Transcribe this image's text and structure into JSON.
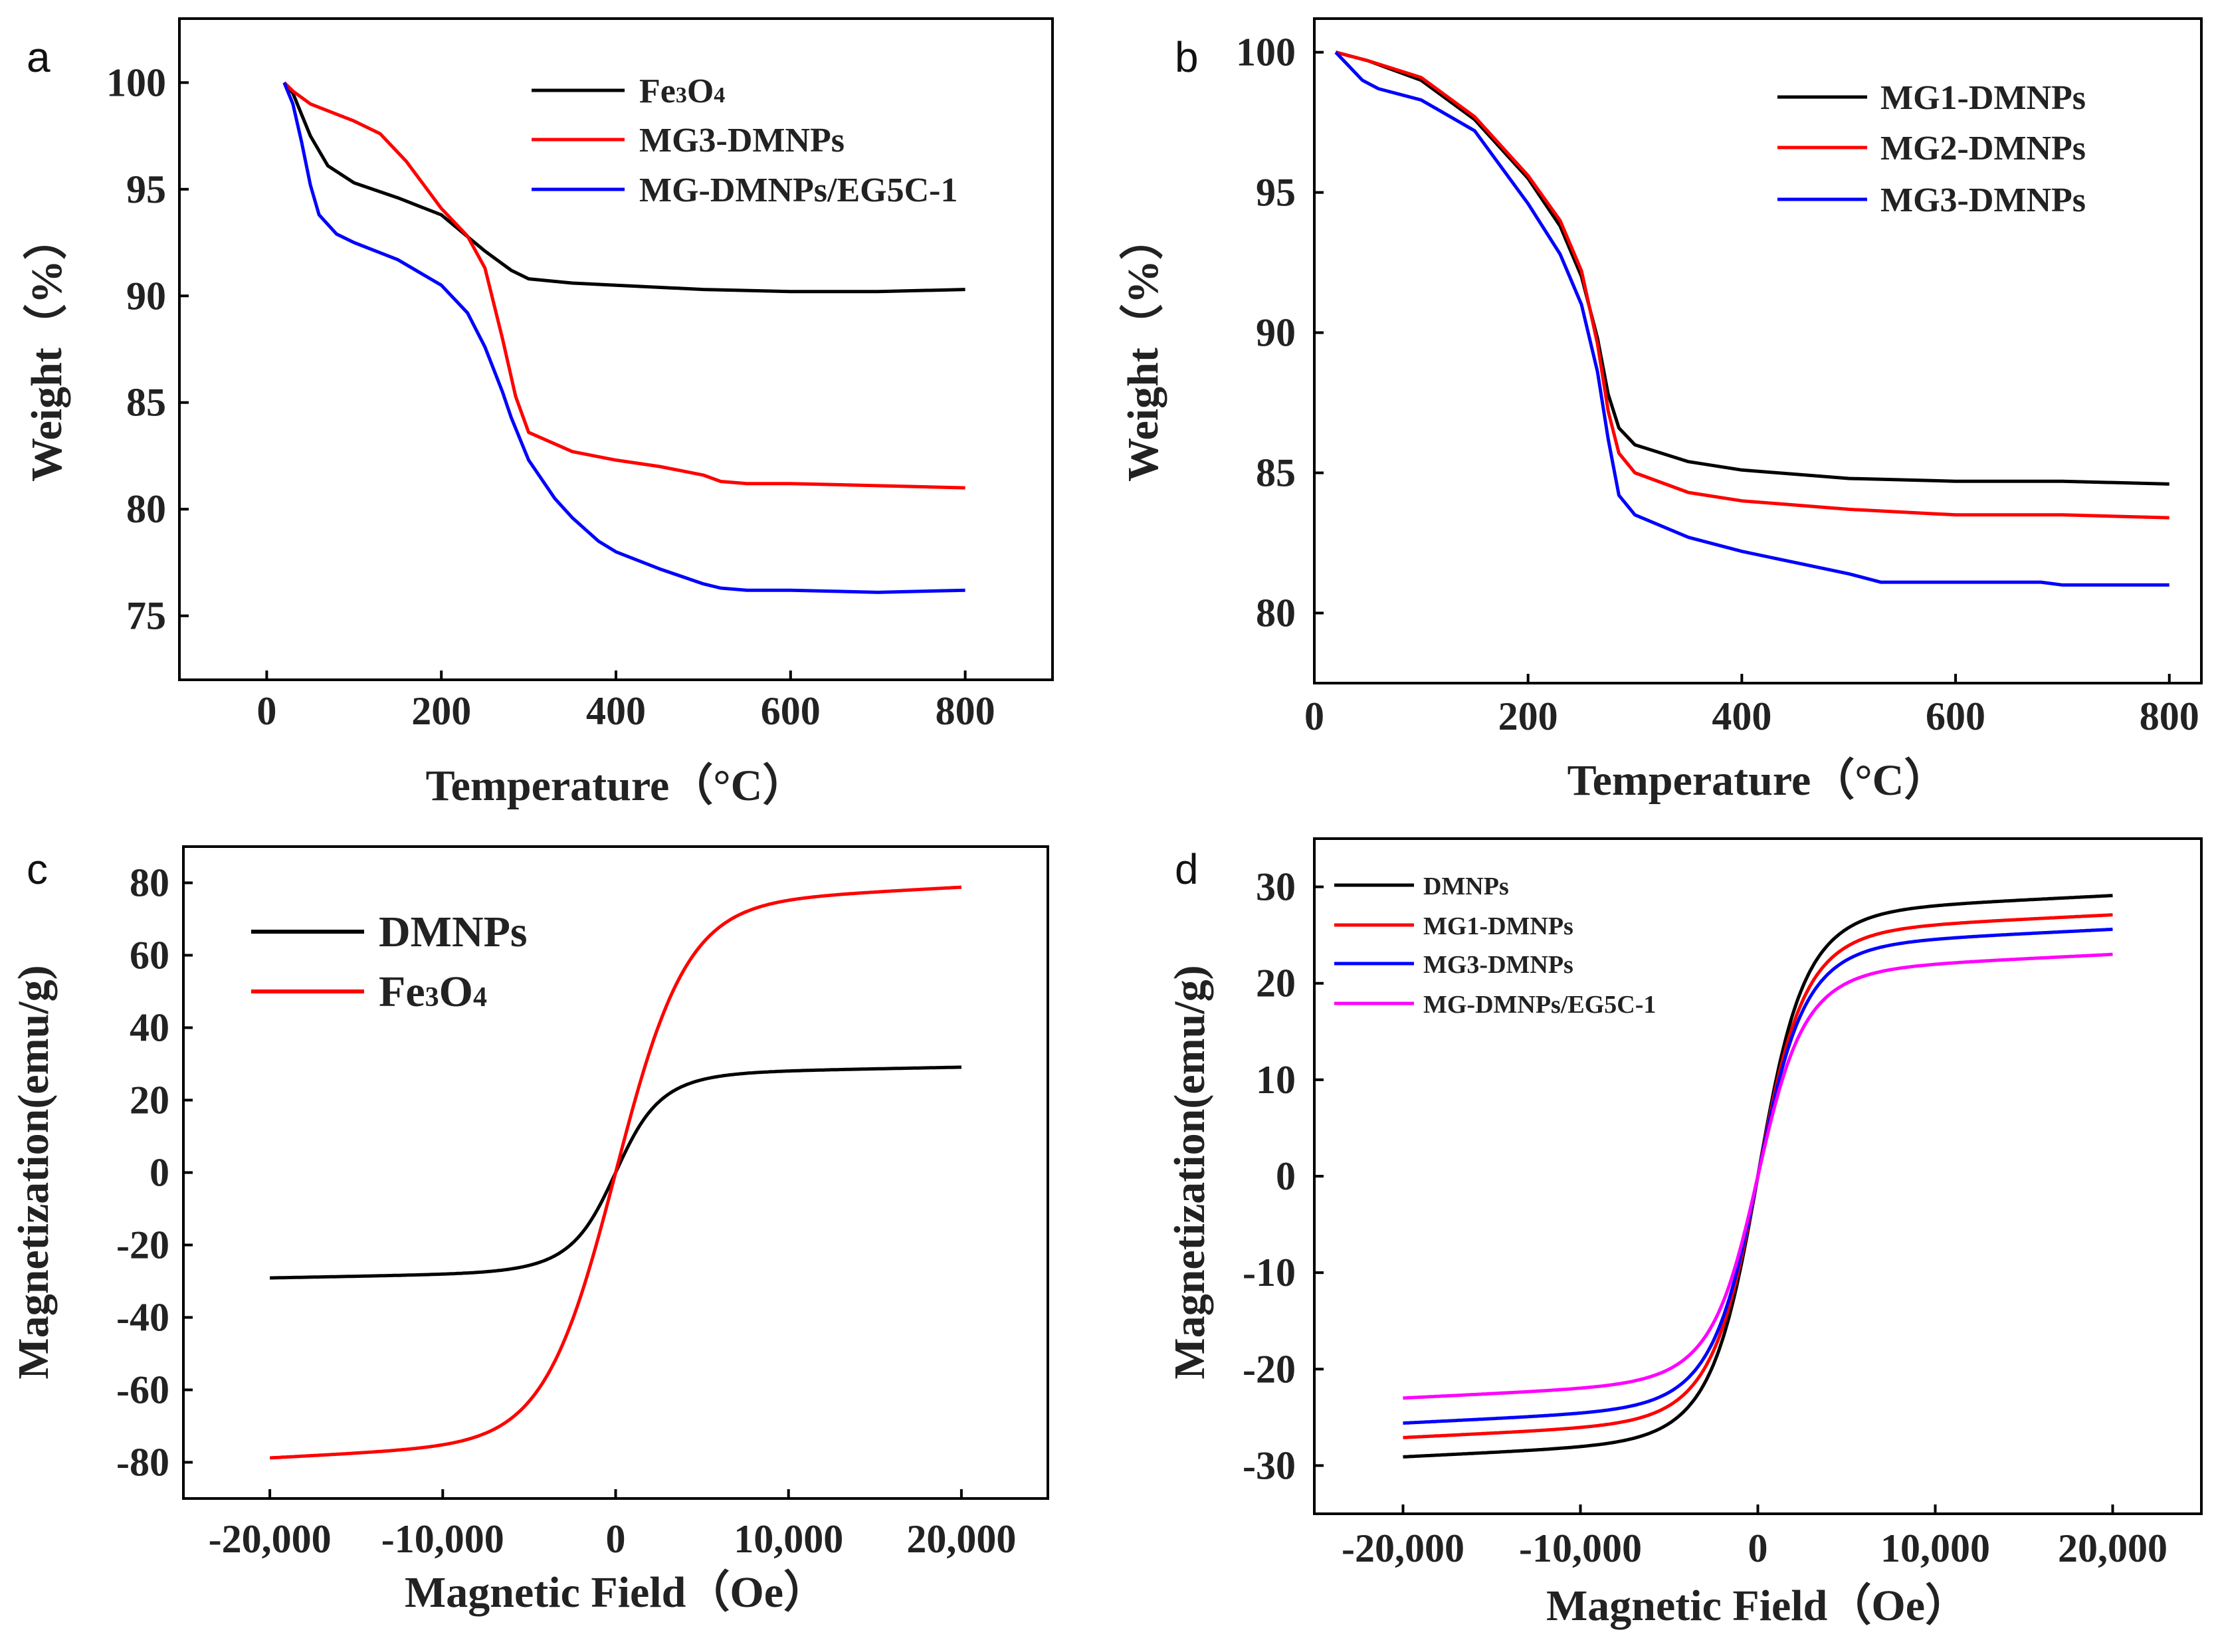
{
  "chart_data": [
    {
      "id": "a",
      "panel_label": "a",
      "type": "line",
      "title": "",
      "xlabel": "Temperature（°C）",
      "ylabel": "Weight（%）",
      "xlim": [
        -100,
        900
      ],
      "ylim": [
        72,
        103
      ],
      "xticks": [
        0,
        200,
        400,
        600,
        800
      ],
      "xtick_labels": [
        "0",
        "200",
        "400",
        "600",
        "800"
      ],
      "yticks": [
        75,
        80,
        85,
        90,
        95,
        100
      ],
      "ytick_labels": [
        "75",
        "80",
        "85",
        "90",
        "95",
        "100"
      ],
      "grid": false,
      "legend_position": "top-right",
      "series": [
        {
          "name": "Fe3O4",
          "label_main": "Fe",
          "label_sub1": "3",
          "label_mid": "O",
          "label_sub2": "4",
          "color": "#000000",
          "x": [
            20,
            30,
            50,
            70,
            100,
            150,
            200,
            250,
            280,
            300,
            350,
            400,
            500,
            600,
            700,
            800
          ],
          "y": [
            100,
            99.5,
            97.5,
            96.1,
            95.3,
            94.6,
            93.8,
            92.1,
            91.2,
            90.8,
            90.6,
            90.5,
            90.3,
            90.2,
            90.2,
            90.3
          ]
        },
        {
          "name": "MG3-DMNPs",
          "color": "#ff0000",
          "x": [
            20,
            30,
            50,
            100,
            130,
            160,
            200,
            230,
            250,
            270,
            285,
            300,
            350,
            400,
            450,
            500,
            520,
            550,
            600,
            700,
            800
          ],
          "y": [
            100,
            99.6,
            99.0,
            98.2,
            97.6,
            96.3,
            94.1,
            92.8,
            91.3,
            88.0,
            85.3,
            83.6,
            82.7,
            82.3,
            82.0,
            81.6,
            81.3,
            81.2,
            81.2,
            81.1,
            81.0
          ]
        },
        {
          "name": "MG-DMNPs/EG5C-1",
          "color": "#0000ff",
          "x": [
            20,
            30,
            40,
            50,
            60,
            80,
            100,
            150,
            200,
            230,
            250,
            270,
            280,
            300,
            330,
            350,
            380,
            400,
            450,
            500,
            520,
            550,
            600,
            700,
            800
          ],
          "y": [
            100,
            99.0,
            97.2,
            95.2,
            93.8,
            92.9,
            92.5,
            91.7,
            90.5,
            89.2,
            87.6,
            85.5,
            84.3,
            82.3,
            80.5,
            79.6,
            78.5,
            78.0,
            77.2,
            76.5,
            76.3,
            76.2,
            76.2,
            76.1,
            76.2
          ]
        }
      ]
    },
    {
      "id": "b",
      "panel_label": "b",
      "type": "line",
      "title": "",
      "xlabel": "Temperature（°C）",
      "ylabel": "Weight（%）",
      "xlim": [
        0,
        830
      ],
      "ylim": [
        77.5,
        101.2
      ],
      "xticks": [
        0,
        200,
        400,
        600,
        800
      ],
      "xtick_labels": [
        "0",
        "200",
        "400",
        "600",
        "800"
      ],
      "yticks": [
        80,
        85,
        90,
        95,
        100
      ],
      "ytick_labels": [
        "80",
        "85",
        "90",
        "95",
        "100"
      ],
      "grid": false,
      "legend_position": "top-right",
      "series": [
        {
          "name": "MG1-DMNPs",
          "color": "#000000",
          "x": [
            20,
            50,
            100,
            150,
            200,
            230,
            250,
            265,
            275,
            285,
            300,
            350,
            400,
            500,
            600,
            700,
            800
          ],
          "y": [
            100,
            99.7,
            99.0,
            97.6,
            95.5,
            93.8,
            92.0,
            89.8,
            87.8,
            86.6,
            86.0,
            85.4,
            85.1,
            84.8,
            84.7,
            84.7,
            84.6
          ]
        },
        {
          "name": "MG2-DMNPs",
          "color": "#ff0000",
          "x": [
            20,
            50,
            100,
            150,
            200,
            230,
            250,
            265,
            275,
            285,
            300,
            350,
            400,
            500,
            600,
            700,
            800
          ],
          "y": [
            100,
            99.7,
            99.1,
            97.7,
            95.6,
            94.0,
            92.2,
            89.6,
            87.2,
            85.7,
            85.0,
            84.3,
            84.0,
            83.7,
            83.5,
            83.5,
            83.4
          ]
        },
        {
          "name": "MG3-DMNPs",
          "color": "#0000ff",
          "x": [
            20,
            30,
            45,
            60,
            100,
            150,
            200,
            230,
            250,
            265,
            275,
            285,
            300,
            350,
            400,
            450,
            500,
            530,
            600,
            680,
            700,
            800
          ],
          "y": [
            100,
            99.6,
            99.0,
            98.7,
            98.3,
            97.2,
            94.6,
            92.8,
            91.0,
            88.6,
            86.2,
            84.2,
            83.5,
            82.7,
            82.2,
            81.8,
            81.4,
            81.1,
            81.1,
            81.1,
            81.0,
            81.0
          ]
        }
      ]
    },
    {
      "id": "c",
      "panel_label": "c",
      "type": "line",
      "title": "",
      "xlabel": "Magnetic Field（Oe）",
      "ylabel": "Magnetization(emu/g)",
      "xlim": [
        -25000,
        25000
      ],
      "ylim": [
        -90,
        90
      ],
      "xticks": [
        -20000,
        -10000,
        0,
        10000,
        20000
      ],
      "xtick_labels": [
        "-20,000",
        "-10,000",
        "0",
        "10,000",
        "20,000"
      ],
      "yticks": [
        -80,
        -60,
        -40,
        -20,
        0,
        20,
        40,
        60,
        80
      ],
      "ytick_labels": [
        "-80",
        "-60",
        "-40",
        "-20",
        "0",
        "20",
        "40",
        "60",
        "80"
      ],
      "grid": false,
      "legend_position": "top-left",
      "series": [
        {
          "name": "DMNPs",
          "color": "#000000",
          "ms": 27.3,
          "h0": 210,
          "slope": 9e-05
        },
        {
          "name": "Fe3O4",
          "label_main": "Fe",
          "label_sub1": "3",
          "label_mid": "O",
          "label_sub2": "4",
          "color": "#ff0000",
          "ms": 73.8,
          "h0": 420,
          "slope": 0.00025
        }
      ]
    },
    {
      "id": "d",
      "panel_label": "d",
      "type": "line",
      "title": "",
      "xlabel": "Magnetic Field（Oe）",
      "ylabel": "Magnetization(emu/g)",
      "xlim": [
        -25000,
        25000
      ],
      "ylim": [
        -35,
        35
      ],
      "xticks": [
        -20000,
        -10000,
        0,
        10000,
        20000
      ],
      "xtick_labels": [
        "-20,000",
        "-10,000",
        "0",
        "10,000",
        "20,000"
      ],
      "yticks": [
        -30,
        -20,
        -10,
        0,
        10,
        20,
        30
      ],
      "ytick_labels": [
        "-30",
        "-20",
        "-10",
        "0",
        "10",
        "20",
        "30"
      ],
      "grid": false,
      "legend_position": "top-left",
      "series": [
        {
          "name": "DMNPs",
          "color": "#000000",
          "ms": 27.3,
          "h0": 210,
          "slope": 9e-05
        },
        {
          "name": "MG1-DMNPs",
          "color": "#ff0000",
          "ms": 25.3,
          "h0": 210,
          "slope": 9e-05
        },
        {
          "name": "MG3-DMNPs",
          "color": "#0000ff",
          "ms": 23.8,
          "h0": 210,
          "slope": 9e-05
        },
        {
          "name": "MG-DMNPs/EG5C-1",
          "color": "#ff00ff",
          "ms": 21.2,
          "h0": 210,
          "slope": 9e-05
        }
      ]
    }
  ]
}
